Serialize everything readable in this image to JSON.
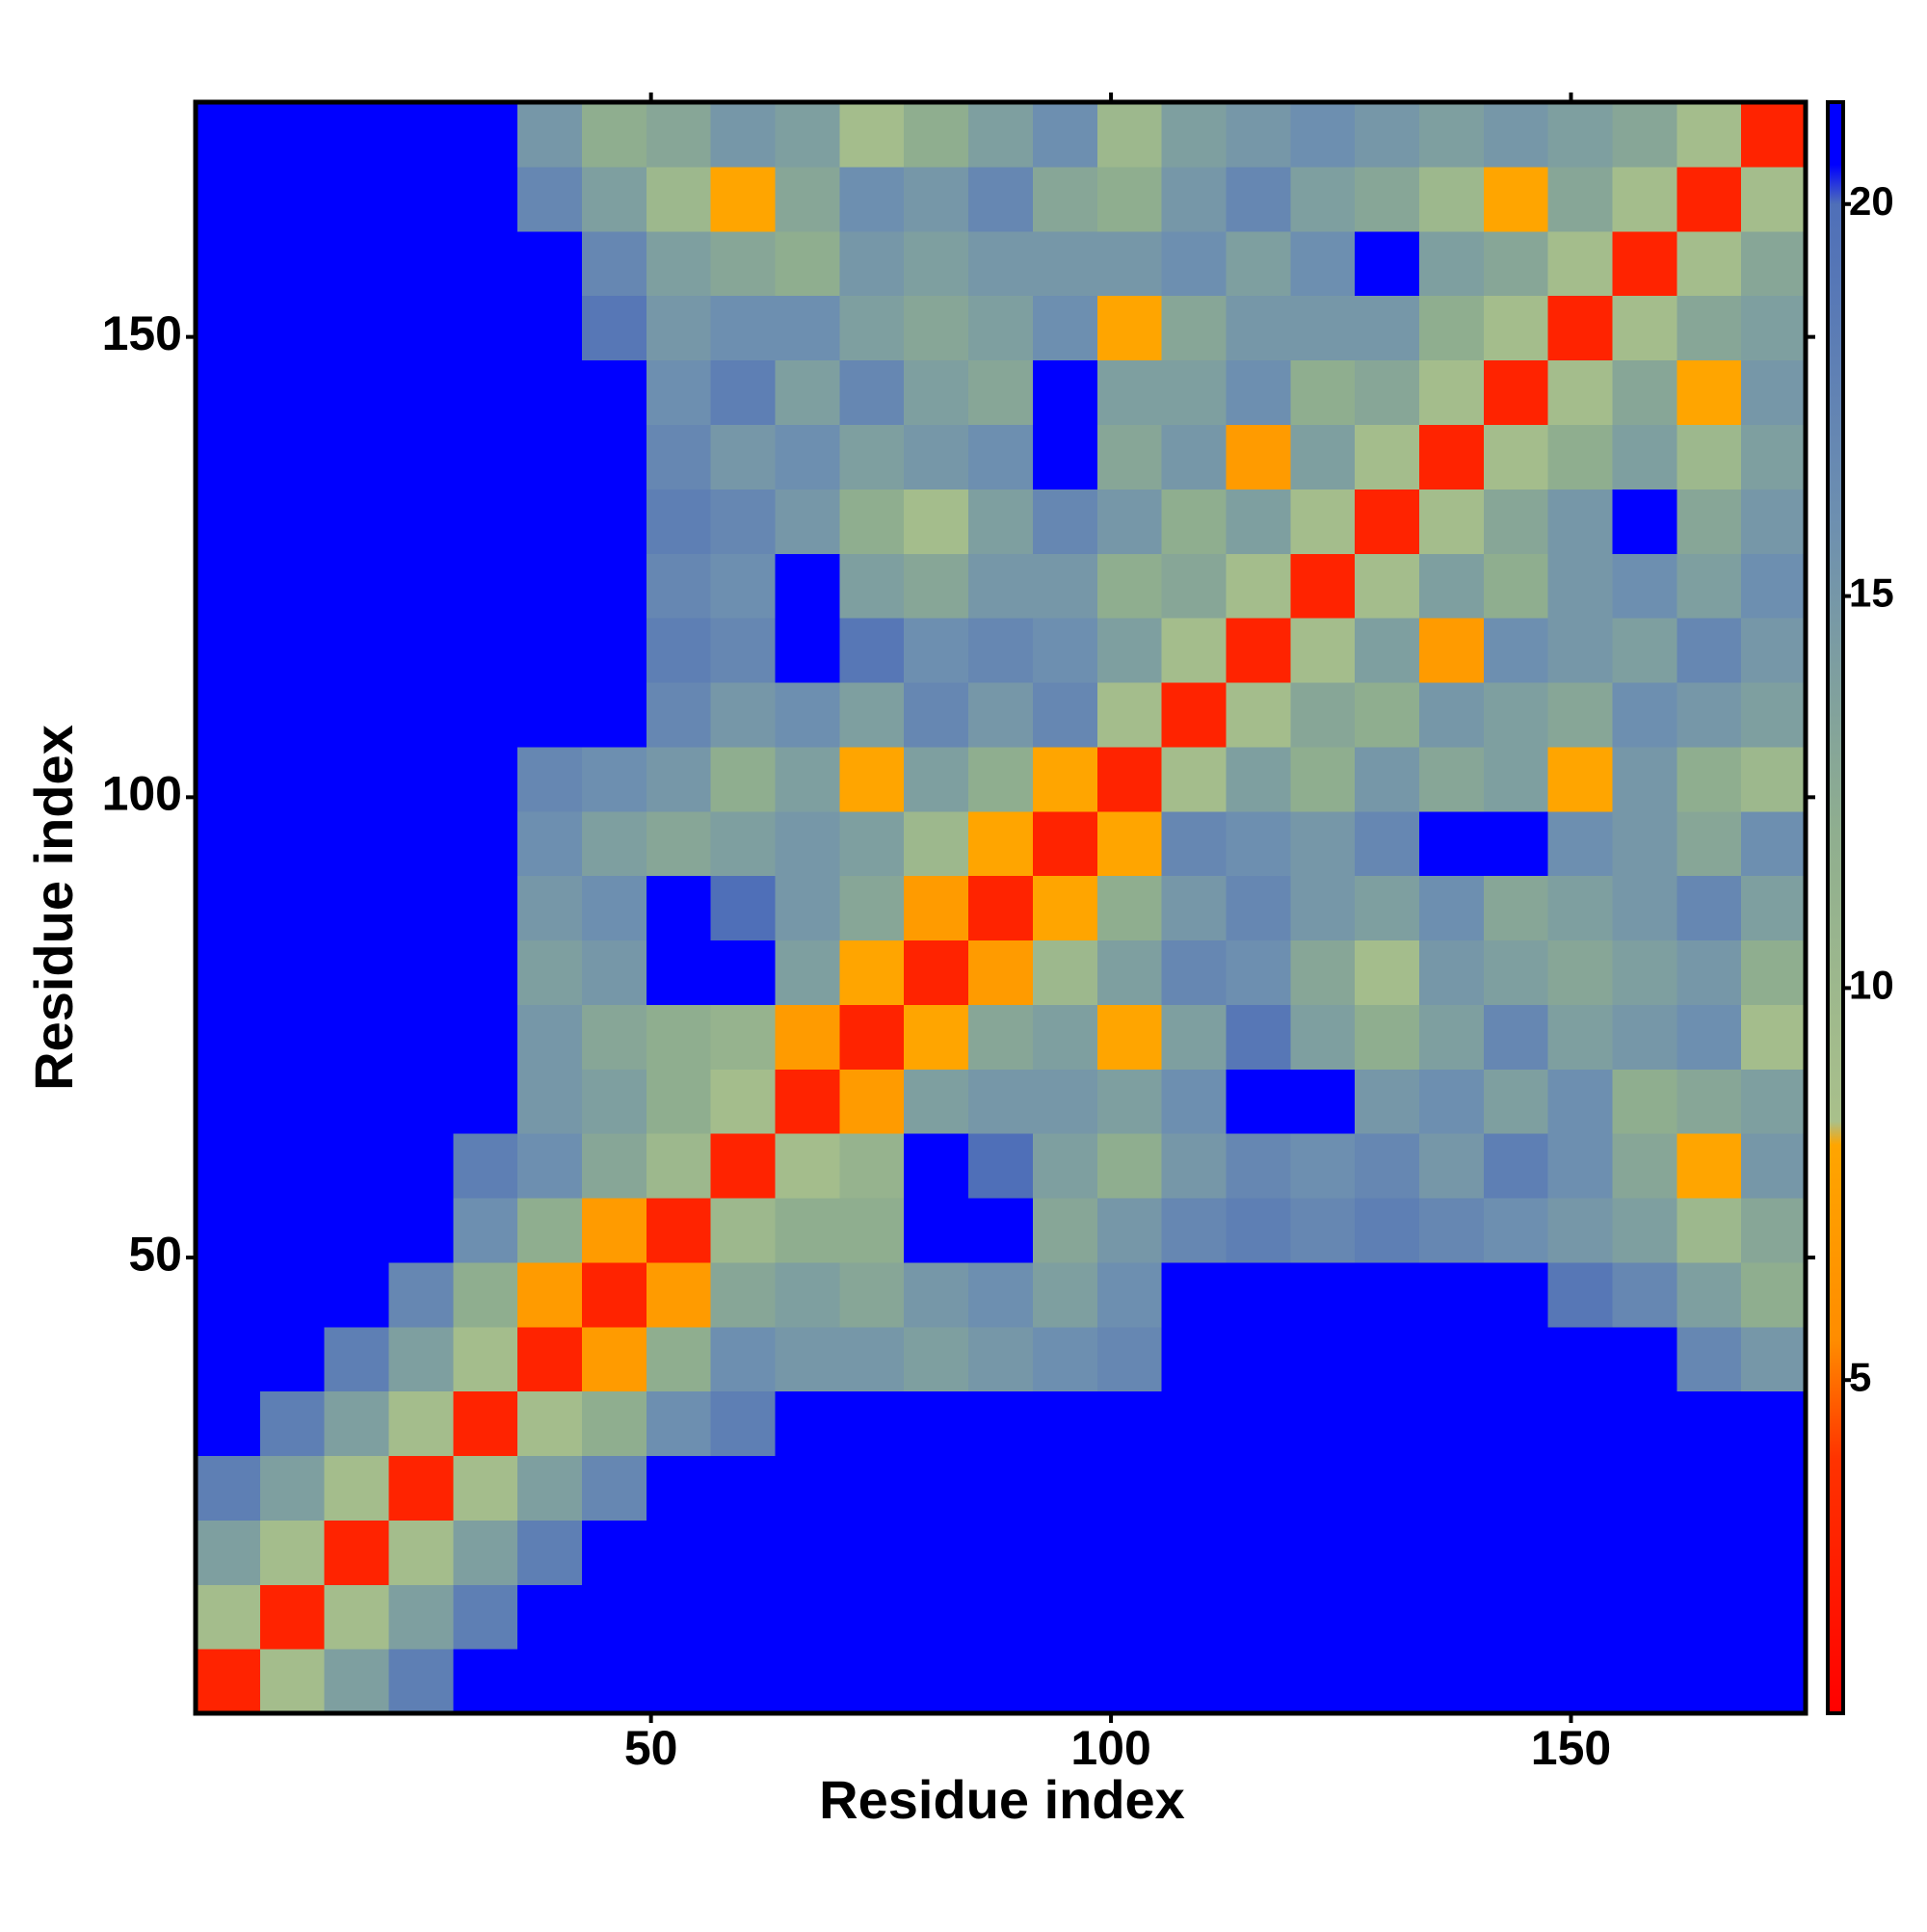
{
  "chart_data": {
    "type": "heatmap",
    "x_label": "Residue index",
    "y_label": "Residue index",
    "x_bins": [
      0.5,
      7.5,
      14.5,
      21.5,
      28.5,
      35.5,
      42.5,
      49.5,
      56.5,
      63.5,
      70.5,
      77.5,
      84.5,
      91.5,
      98.5,
      105.5,
      112.5,
      119.5,
      126.5,
      133.5,
      140.5,
      147.5,
      154.5,
      161.5,
      168.5,
      175.5
    ],
    "y_bins": [
      0.5,
      7.5,
      14.5,
      21.5,
      28.5,
      35.5,
      42.5,
      49.5,
      56.5,
      63.5,
      70.5,
      77.5,
      84.5,
      91.5,
      98.5,
      105.5,
      112.5,
      119.5,
      126.5,
      133.5,
      140.5,
      147.5,
      154.5,
      161.5,
      168.5,
      175.5
    ],
    "xlim": [
      0.5,
      175.5
    ],
    "ylim": [
      0.5,
      175.5
    ],
    "xticks": [
      50,
      100,
      150
    ],
    "yticks": [
      50,
      100,
      150
    ],
    "zlim": [
      0.75,
      21.3
    ],
    "zticks": [
      5,
      10,
      15,
      20
    ],
    "colorscale": [
      [
        0.75,
        "#ff0000"
      ],
      [
        4,
        "#ff3300"
      ],
      [
        5.5,
        "#ff8c00"
      ],
      [
        8,
        "#ffa500"
      ],
      [
        8.3,
        "#a9c08b"
      ],
      [
        12,
        "#8fae8f"
      ],
      [
        16,
        "#6d8fb0"
      ],
      [
        20,
        "#4f6fb8"
      ],
      [
        20.5,
        "#0000ff"
      ],
      [
        21.3,
        "#0000ff"
      ]
    ],
    "z": [
      [
        3,
        9,
        14,
        18,
        21,
        21,
        21,
        21,
        21,
        21,
        21,
        21,
        21,
        21,
        21,
        21,
        21,
        21,
        21,
        21,
        21,
        21,
        21,
        21,
        21
      ],
      [
        9,
        3,
        9,
        14,
        18,
        21,
        21,
        21,
        21,
        21,
        21,
        21,
        21,
        21,
        21,
        21,
        21,
        21,
        21,
        21,
        21,
        21,
        21,
        21,
        21
      ],
      [
        14,
        9,
        3,
        9,
        14,
        18,
        21,
        21,
        21,
        21,
        21,
        21,
        21,
        21,
        21,
        21,
        21,
        21,
        21,
        21,
        21,
        21,
        21,
        21,
        21
      ],
      [
        18,
        14,
        9,
        3,
        9,
        14,
        17,
        21,
        21,
        21,
        21,
        21,
        21,
        21,
        21,
        21,
        21,
        21,
        21,
        21,
        21,
        21,
        21,
        21,
        21
      ],
      [
        21,
        18,
        14,
        9,
        3,
        9,
        12,
        16,
        18,
        21,
        21,
        21,
        21,
        21,
        21,
        21,
        21,
        21,
        21,
        21,
        21,
        21,
        21,
        21,
        21
      ],
      [
        21,
        21,
        18,
        14,
        9,
        3,
        7,
        12,
        16,
        15,
        15,
        14,
        15,
        16,
        17,
        21,
        21,
        21,
        21,
        21,
        21,
        21,
        21,
        17,
        15
      ],
      [
        21,
        21,
        21,
        17,
        12,
        7,
        3,
        7,
        13,
        14,
        13,
        15,
        16,
        14,
        16,
        21,
        21,
        21,
        21,
        21,
        21,
        19,
        17,
        14,
        12
      ],
      [
        21,
        21,
        21,
        21,
        16,
        12,
        7,
        3,
        10,
        12,
        12,
        21,
        21,
        13,
        15,
        17,
        18,
        17,
        18,
        17,
        16,
        15,
        14,
        10,
        13
      ],
      [
        21,
        21,
        21,
        21,
        18,
        16,
        13,
        10,
        3,
        9,
        11,
        21,
        20,
        14,
        12,
        15,
        17,
        16,
        17,
        15,
        18,
        16,
        13,
        8,
        15
      ],
      [
        21,
        21,
        21,
        21,
        21,
        15,
        14,
        12,
        9,
        3,
        7,
        14,
        15,
        15,
        14,
        16,
        21,
        21,
        15,
        16,
        14,
        16,
        12,
        13,
        14
      ],
      [
        21,
        21,
        21,
        21,
        21,
        15,
        13,
        12,
        11,
        7,
        3,
        8,
        13,
        14,
        8,
        14,
        19,
        14,
        12,
        14,
        17,
        14,
        15,
        16,
        9
      ],
      [
        21,
        21,
        21,
        21,
        21,
        14,
        15,
        21,
        21,
        14,
        8,
        3,
        7,
        10,
        14,
        17,
        16,
        13,
        9,
        15,
        14,
        13,
        14,
        15,
        12
      ],
      [
        21,
        21,
        21,
        21,
        21,
        15,
        16,
        21,
        20,
        15,
        13,
        7,
        3,
        8,
        12,
        15,
        17,
        15,
        14,
        16,
        13,
        14,
        15,
        17,
        14
      ],
      [
        21,
        21,
        21,
        21,
        21,
        16,
        14,
        13,
        14,
        15,
        14,
        10,
        8,
        3,
        8,
        17,
        16,
        15,
        17,
        21,
        21,
        16,
        15,
        13,
        16
      ],
      [
        21,
        21,
        21,
        21,
        21,
        17,
        16,
        15,
        12,
        14,
        8,
        14,
        12,
        8,
        3,
        9,
        14,
        12,
        15,
        13,
        14,
        8,
        15,
        12,
        10
      ],
      [
        21,
        21,
        21,
        21,
        21,
        21,
        21,
        17,
        15,
        16,
        14,
        17,
        15,
        17,
        9,
        3,
        9,
        13,
        12,
        15,
        14,
        13,
        16,
        15,
        14
      ],
      [
        21,
        21,
        21,
        21,
        21,
        21,
        21,
        18,
        17,
        21,
        19,
        16,
        17,
        16,
        14,
        9,
        3,
        9,
        14,
        7,
        16,
        15,
        14,
        17,
        15
      ],
      [
        21,
        21,
        21,
        21,
        21,
        21,
        21,
        17,
        16,
        21,
        14,
        13,
        15,
        15,
        12,
        13,
        9,
        3,
        9,
        14,
        12,
        15,
        16,
        14,
        16
      ],
      [
        21,
        21,
        21,
        21,
        21,
        21,
        21,
        18,
        17,
        15,
        12,
        9,
        14,
        17,
        15,
        12,
        14,
        9,
        3,
        9,
        13,
        15,
        21,
        13,
        15
      ],
      [
        21,
        21,
        21,
        21,
        21,
        21,
        21,
        17,
        15,
        16,
        14,
        15,
        16,
        21,
        13,
        15,
        7,
        14,
        9,
        3,
        9,
        12,
        14,
        10,
        14
      ],
      [
        21,
        21,
        21,
        21,
        21,
        21,
        21,
        16,
        18,
        14,
        17,
        14,
        13,
        21,
        14,
        14,
        16,
        12,
        13,
        9,
        3,
        9,
        13,
        8,
        15
      ],
      [
        21,
        21,
        21,
        21,
        21,
        21,
        19,
        15,
        16,
        16,
        14,
        13,
        14,
        16,
        8,
        13,
        15,
        15,
        15,
        12,
        9,
        3,
        9,
        13,
        14
      ],
      [
        21,
        21,
        21,
        21,
        21,
        21,
        17,
        14,
        13,
        12,
        15,
        14,
        15,
        15,
        15,
        16,
        14,
        16,
        21,
        14,
        13,
        9,
        3,
        9,
        13
      ],
      [
        21,
        21,
        21,
        21,
        21,
        17,
        14,
        10,
        8,
        13,
        16,
        15,
        17,
        13,
        12,
        15,
        17,
        14,
        13,
        10,
        8,
        13,
        9,
        3,
        9
      ],
      [
        21,
        21,
        21,
        21,
        21,
        15,
        12,
        13,
        15,
        14,
        9,
        12,
        14,
        16,
        10,
        14,
        15,
        16,
        15,
        14,
        15,
        14,
        13,
        9,
        3
      ]
    ]
  }
}
